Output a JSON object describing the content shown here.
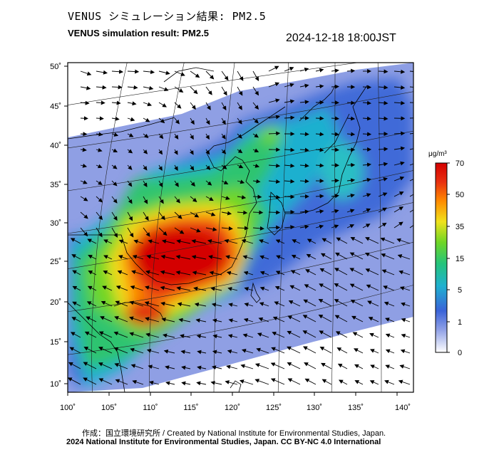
{
  "header": {
    "title_jp": "VENUS シミュレーション結果: PM2.5",
    "title_en": "VENUS simulation result: PM2.5",
    "timestamp": "2024-12-18 18:00JST"
  },
  "map": {
    "lon_ticks": [
      "100˚",
      "105˚",
      "110˚",
      "115˚",
      "120˚",
      "125˚",
      "130˚",
      "135˚",
      "140˚"
    ],
    "lat_ticks": [
      "50˚",
      "45˚",
      "40˚",
      "35˚",
      "30˚",
      "25˚",
      "20˚",
      "15˚",
      "10˚"
    ],
    "lon_range": [
      100,
      142
    ],
    "lat_range": [
      9,
      51
    ],
    "pollution_hotspot": "southern China (around 105–125˚E, 18–29˚N)",
    "wind_vectors": "northeasterly flow over the East China Sea and South China Sea"
  },
  "colorbar": {
    "unit": "μg/m³",
    "ticks": [
      "70",
      "50",
      "35",
      "15",
      "5",
      "1",
      "0"
    ],
    "colors": [
      "#ffffff",
      "#8fa0e6",
      "#3a63d8",
      "#1fb0d0",
      "#25c47a",
      "#6ed626",
      "#f0e21c",
      "#ff8a00",
      "#e83010",
      "#d40000"
    ]
  },
  "footer": {
    "credit_jp": "作成：国立環境研究所 / Created by National Institute for Environmental Studies, Japan.",
    "credit_en": "2024 National Institute for Environmental Studies, Japan. CC BY-NC 4.0 International"
  }
}
